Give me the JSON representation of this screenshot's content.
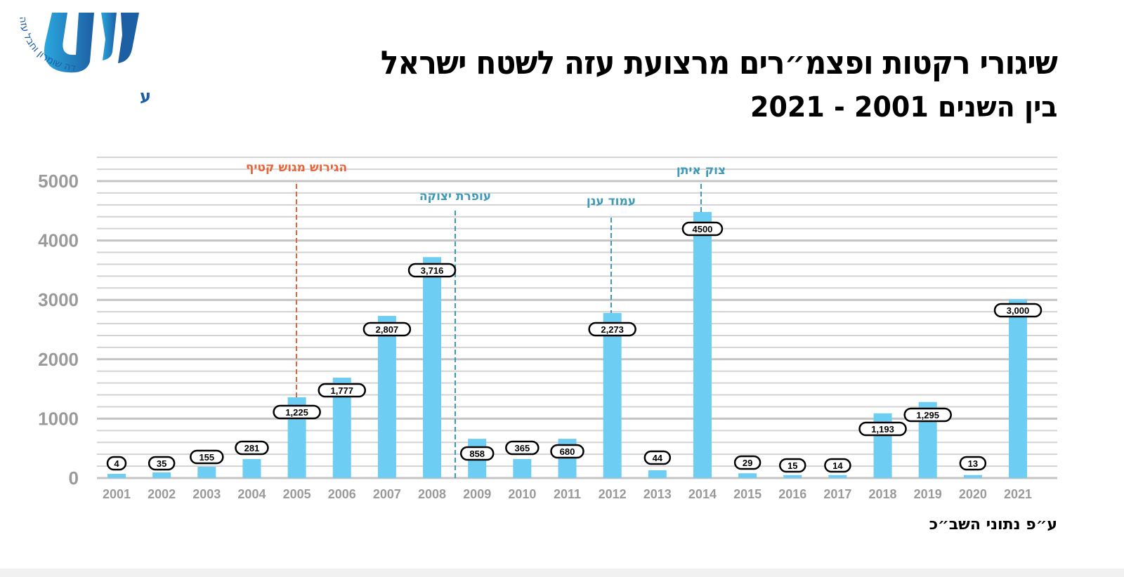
{
  "logo": {
    "arc_text": "יהודה שומרון וחבל עזה",
    "name": "מועצת יש״ע"
  },
  "title": {
    "line1": "שיגורי רקטות ופצמ״רים מרצועת עזה לשטח ישראל",
    "line2": "בין השנים 2001 - 2021"
  },
  "source": "ע״פ נתוני השב״כ",
  "colors": {
    "bar": "#6dcdf3",
    "grid": "#d3d3d3",
    "axis_text": "#9a9a9a",
    "annotation_orange": "#e8643a",
    "annotation_teal": "#3f9ab8"
  },
  "chart_data": {
    "type": "bar",
    "title": "שיגורי רקטות ופצמ״רים מרצועת עזה לשטח ישראל בין השנים 2001 - 2021",
    "categories": [
      "2001",
      "2002",
      "2003",
      "2004",
      "2005",
      "2006",
      "2007",
      "2008",
      "2009",
      "2010",
      "2011",
      "2012",
      "2013",
      "2014",
      "2015",
      "2016",
      "2017",
      "2018",
      "2019",
      "2020",
      "2021"
    ],
    "values": [
      4,
      35,
      155,
      281,
      1225,
      1777,
      2807,
      3716,
      858,
      365,
      680,
      2273,
      44,
      4500,
      29,
      15,
      14,
      1193,
      1295,
      13,
      3000
    ],
    "data_labels": [
      "4",
      "35",
      "155",
      "281",
      "1,225",
      "1,777",
      "2,807",
      "3,716",
      "858",
      "365",
      "680",
      "2,273",
      "44",
      "4500",
      "29",
      "15",
      "14",
      "1,193",
      "1,295",
      "13",
      "3,000"
    ],
    "drawn_bar_heights": [
      70,
      95,
      190,
      320,
      1360,
      1690,
      2730,
      3720,
      660,
      320,
      660,
      2780,
      130,
      4480,
      80,
      50,
      50,
      1090,
      1280,
      50,
      3010
    ],
    "yticks": [
      "0",
      "1000",
      "2000",
      "3000",
      "4000",
      "5000"
    ],
    "ylim": [
      0,
      5500
    ],
    "minor_grid_step": 200,
    "grid": true,
    "xlabel": "",
    "ylabel": "",
    "annotations": [
      {
        "text": "הגירוש מגוש קטיף",
        "at": "2005",
        "color": "orange"
      },
      {
        "text": "עופרת יצוקה",
        "at": "2008-2009",
        "color": "teal"
      },
      {
        "text": "עמוד ענן",
        "at": "2012",
        "color": "teal"
      },
      {
        "text": "צוק איתן",
        "at": "2014",
        "color": "teal"
      }
    ]
  }
}
